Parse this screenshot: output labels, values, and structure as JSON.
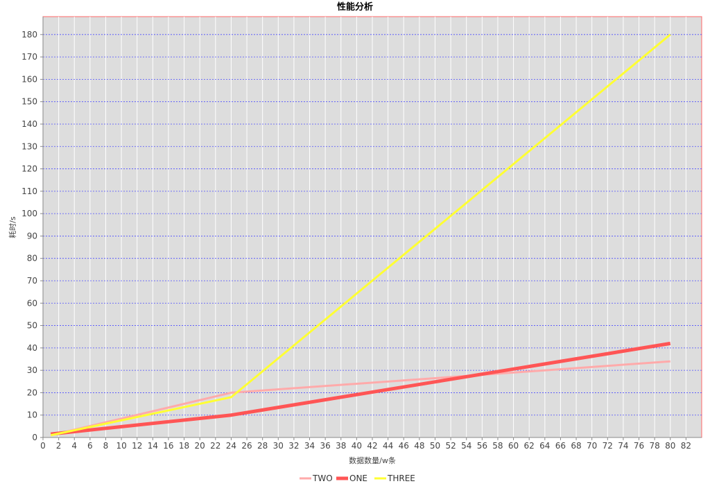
{
  "chart_data": {
    "type": "line",
    "title": "性能分析",
    "xlabel": "数据数量/w条",
    "ylabel": "耗时/s",
    "xlim": [
      0,
      84
    ],
    "ylim": [
      0,
      188
    ],
    "xticks": [
      0,
      2,
      4,
      6,
      8,
      10,
      12,
      14,
      16,
      18,
      20,
      22,
      24,
      26,
      28,
      30,
      32,
      34,
      36,
      38,
      40,
      42,
      44,
      46,
      48,
      50,
      52,
      54,
      56,
      58,
      60,
      62,
      64,
      66,
      68,
      70,
      72,
      74,
      76,
      78,
      80,
      82
    ],
    "yticks": [
      0,
      10,
      20,
      30,
      40,
      50,
      60,
      70,
      80,
      90,
      100,
      110,
      120,
      130,
      140,
      150,
      160,
      170,
      180
    ],
    "grid": true,
    "legend_position": "bottom",
    "plot_background": "#dddddd",
    "gridline_color": "#4c4cff",
    "series": [
      {
        "name": "TWO",
        "color": "#ffaaaa",
        "width": 3,
        "x": [
          1,
          24,
          80
        ],
        "y": [
          1,
          20,
          34
        ]
      },
      {
        "name": "ONE",
        "color": "#ff5555",
        "width": 5,
        "x": [
          1,
          24,
          80
        ],
        "y": [
          1.5,
          10,
          42
        ]
      },
      {
        "name": "THREE",
        "color": "#ffff33",
        "width": 3,
        "x": [
          1,
          24,
          80
        ],
        "y": [
          1,
          18,
          180
        ]
      }
    ]
  }
}
